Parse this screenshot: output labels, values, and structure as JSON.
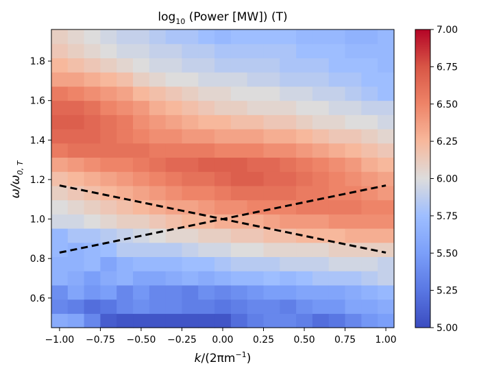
{
  "chart_data": {
    "type": "heatmap",
    "title": "log₁₀ (Power [MW]) (T)",
    "title_main": "log",
    "title_sub": "10",
    "title_rest": " (Power [MW]) (T)",
    "xlabel_italic": "k",
    "xlabel_text": "/(2πm",
    "xlabel_sup": "−1",
    "xlabel_close": ")",
    "ylabel_italic": "ω/ω",
    "ylabel_sub": "0, T",
    "x_range": [
      -1.0,
      1.0
    ],
    "y_range": [
      0.45,
      1.96
    ],
    "x_ticks": [
      -1.0,
      -0.75,
      -0.5,
      -0.25,
      0.0,
      0.25,
      0.5,
      0.75,
      1.0
    ],
    "x_tick_labels": [
      "−1.00",
      "−0.75",
      "−0.50",
      "−0.25",
      "0.00",
      "0.25",
      "0.50",
      "0.75",
      "1.00"
    ],
    "y_ticks": [
      0.6,
      0.8,
      1.0,
      1.2,
      1.4,
      1.6,
      1.8
    ],
    "y_tick_labels": [
      "0.6",
      "0.8",
      "1.0",
      "1.2",
      "1.4",
      "1.6",
      "1.8"
    ],
    "colorbar": {
      "min": 5.0,
      "max": 7.0,
      "ticks": [
        5.0,
        5.25,
        5.5,
        5.75,
        6.0,
        6.25,
        6.5,
        6.75,
        7.0
      ],
      "tick_labels": [
        "5.00",
        "5.25",
        "5.50",
        "5.75",
        "6.00",
        "6.25",
        "6.50",
        "6.75",
        "7.00"
      ],
      "colormap": "coolwarm"
    },
    "grid": {
      "nx": 21,
      "ny": 21,
      "x_edges_range": [
        -1.05,
        1.05
      ],
      "y_edges_range": [
        0.45,
        1.96
      ]
    },
    "dashed_lines": [
      {
        "x": [
          -1.0,
          1.0
        ],
        "y": [
          1.17,
          0.83
        ]
      },
      {
        "x": [
          -1.0,
          1.0
        ],
        "y": [
          0.83,
          1.17
        ]
      }
    ],
    "values_rows_bottom_to_top": [
      [
        5.6,
        5.55,
        5.35,
        5.1,
        5.05,
        5.05,
        5.05,
        5.05,
        5.05,
        5.05,
        5.05,
        5.2,
        5.3,
        5.35,
        5.35,
        5.3,
        5.2,
        5.25,
        5.35,
        5.45,
        5.5
      ],
      [
        5.35,
        5.3,
        5.2,
        5.25,
        5.35,
        5.4,
        5.35,
        5.35,
        5.3,
        5.3,
        5.25,
        5.3,
        5.35,
        5.35,
        5.3,
        5.4,
        5.45,
        5.45,
        5.55,
        5.55,
        5.6
      ],
      [
        5.4,
        5.55,
        5.45,
        5.5,
        5.35,
        5.45,
        5.35,
        5.35,
        5.3,
        5.4,
        5.35,
        5.4,
        5.45,
        5.5,
        5.5,
        5.55,
        5.55,
        5.55,
        5.6,
        5.65,
        5.7
      ],
      [
        5.65,
        5.6,
        5.5,
        5.6,
        5.65,
        5.55,
        5.55,
        5.6,
        5.65,
        5.6,
        5.65,
        5.7,
        5.7,
        5.75,
        5.7,
        5.75,
        5.8,
        5.8,
        5.8,
        5.85,
        5.9
      ],
      [
        5.65,
        5.65,
        5.7,
        5.55,
        5.65,
        5.7,
        5.7,
        5.7,
        5.75,
        5.75,
        5.8,
        5.85,
        5.85,
        5.85,
        5.9,
        5.9,
        5.9,
        5.95,
        5.95,
        5.95,
        5.9
      ],
      [
        5.7,
        5.65,
        5.7,
        5.75,
        5.85,
        5.85,
        5.85,
        5.85,
        5.9,
        5.95,
        5.95,
        6.0,
        6.0,
        6.05,
        6.05,
        6.05,
        6.05,
        6.1,
        6.1,
        6.1,
        6.1
      ],
      [
        5.7,
        5.8,
        5.8,
        5.85,
        5.9,
        5.95,
        6.0,
        6.05,
        6.05,
        6.1,
        6.1,
        6.15,
        6.15,
        6.2,
        6.2,
        6.25,
        6.25,
        6.25,
        6.3,
        6.3,
        6.3
      ],
      [
        5.95,
        5.95,
        6.0,
        6.05,
        6.1,
        6.1,
        6.15,
        6.2,
        6.25,
        6.25,
        6.3,
        6.3,
        6.3,
        6.35,
        6.4,
        6.4,
        6.4,
        6.45,
        6.45,
        6.45,
        6.45
      ],
      [
        6.0,
        6.05,
        6.1,
        6.15,
        6.2,
        6.25,
        6.3,
        6.35,
        6.35,
        6.4,
        6.45,
        6.45,
        6.5,
        6.5,
        6.5,
        6.55,
        6.55,
        6.55,
        6.55,
        6.5,
        6.5
      ],
      [
        6.1,
        6.15,
        6.2,
        6.25,
        6.3,
        6.35,
        6.4,
        6.45,
        6.5,
        6.5,
        6.55,
        6.6,
        6.6,
        6.6,
        6.6,
        6.55,
        6.55,
        6.5,
        6.5,
        6.45,
        6.4
      ],
      [
        6.2,
        6.25,
        6.3,
        6.35,
        6.4,
        6.45,
        6.5,
        6.55,
        6.6,
        6.6,
        6.65,
        6.7,
        6.7,
        6.65,
        6.65,
        6.6,
        6.55,
        6.5,
        6.45,
        6.4,
        6.35
      ],
      [
        6.35,
        6.4,
        6.45,
        6.5,
        6.5,
        6.55,
        6.6,
        6.65,
        6.65,
        6.7,
        6.7,
        6.7,
        6.65,
        6.65,
        6.6,
        6.55,
        6.5,
        6.45,
        6.4,
        6.3,
        6.25
      ],
      [
        6.55,
        6.6,
        6.6,
        6.6,
        6.6,
        6.6,
        6.55,
        6.55,
        6.55,
        6.55,
        6.5,
        6.5,
        6.5,
        6.45,
        6.45,
        6.4,
        6.35,
        6.3,
        6.25,
        6.2,
        6.15
      ],
      [
        6.65,
        6.65,
        6.65,
        6.6,
        6.55,
        6.5,
        6.45,
        6.45,
        6.4,
        6.4,
        6.35,
        6.35,
        6.35,
        6.3,
        6.3,
        6.25,
        6.2,
        6.15,
        6.15,
        6.1,
        6.05
      ],
      [
        6.7,
        6.7,
        6.65,
        6.6,
        6.55,
        6.45,
        6.4,
        6.35,
        6.3,
        6.25,
        6.25,
        6.2,
        6.2,
        6.15,
        6.15,
        6.1,
        6.05,
        6.05,
        6.0,
        6.0,
        5.95
      ],
      [
        6.65,
        6.65,
        6.6,
        6.5,
        6.45,
        6.4,
        6.3,
        6.25,
        6.2,
        6.15,
        6.1,
        6.1,
        6.05,
        6.05,
        6.05,
        6.0,
        6.0,
        5.95,
        5.95,
        5.9,
        5.9
      ],
      [
        6.55,
        6.5,
        6.45,
        6.4,
        6.35,
        6.25,
        6.2,
        6.15,
        6.1,
        6.05,
        6.05,
        6.0,
        6.0,
        6.0,
        5.95,
        5.95,
        5.9,
        5.9,
        5.85,
        5.8,
        5.75
      ],
      [
        6.35,
        6.35,
        6.3,
        6.25,
        6.2,
        6.1,
        6.05,
        6.0,
        6.0,
        5.95,
        5.95,
        5.95,
        5.9,
        5.9,
        5.85,
        5.85,
        5.85,
        5.8,
        5.8,
        5.75,
        5.75
      ],
      [
        6.25,
        6.2,
        6.15,
        6.1,
        6.05,
        6.0,
        5.95,
        5.95,
        5.9,
        5.9,
        5.85,
        5.85,
        5.85,
        5.85,
        5.8,
        5.8,
        5.8,
        5.75,
        5.75,
        5.75,
        5.7
      ],
      [
        6.15,
        6.1,
        6.05,
        6.0,
        5.95,
        5.95,
        5.9,
        5.9,
        5.85,
        5.85,
        5.8,
        5.8,
        5.8,
        5.8,
        5.8,
        5.75,
        5.75,
        5.75,
        5.7,
        5.7,
        5.7
      ],
      [
        6.1,
        6.05,
        6.0,
        5.95,
        5.9,
        5.9,
        5.85,
        5.8,
        5.8,
        5.75,
        5.7,
        5.75,
        5.75,
        5.75,
        5.75,
        5.7,
        5.7,
        5.7,
        5.65,
        5.65,
        5.7
      ]
    ]
  }
}
